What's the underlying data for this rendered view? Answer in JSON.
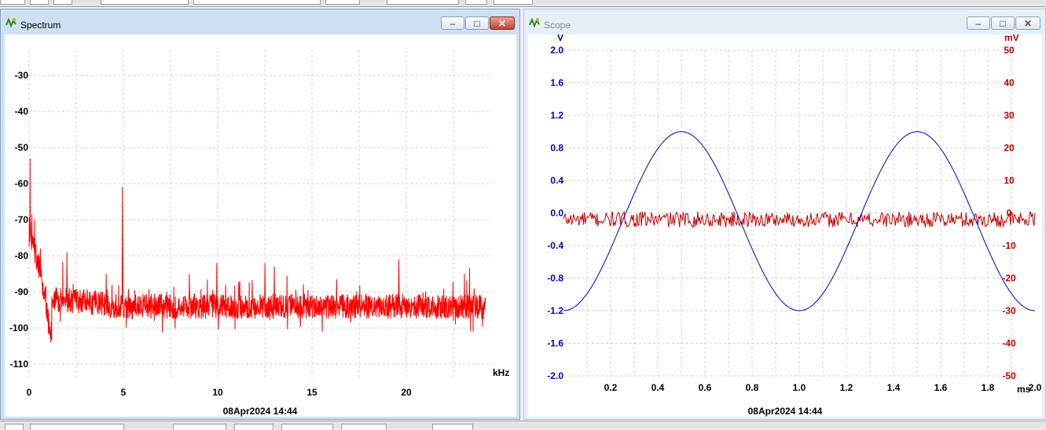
{
  "spectrum": {
    "title": "Spectrum",
    "x_unit": "kHz",
    "timestamp": "08Apr2024  14:44",
    "y_ticks": [
      "-30",
      "-40",
      "-50",
      "-60",
      "-70",
      "-80",
      "-90",
      "-100",
      "-110"
    ],
    "x_ticks": [
      "0",
      "5",
      "10",
      "15",
      "20"
    ],
    "buttons": {
      "minimize": "minimize",
      "maximize": "maximize",
      "close": "close"
    }
  },
  "scope": {
    "title": "Scope",
    "left_unit": "V",
    "right_unit": "mV",
    "x_unit": "ms",
    "timestamp": "08Apr2024  14:44",
    "left_ticks": [
      "2.0",
      "1.6",
      "1.2",
      "0.8",
      "0.4",
      "0.0",
      "-0.4",
      "-0.8",
      "-1.2",
      "-1.6",
      "-2.0"
    ],
    "right_ticks": [
      "50",
      "40",
      "30",
      "20",
      "10",
      "0",
      "-10",
      "-20",
      "-30",
      "-40",
      "-50"
    ],
    "x_ticks": [
      "0.2",
      "0.4",
      "0.6",
      "0.8",
      "1.0",
      "1.2",
      "1.4",
      "1.6",
      "1.8",
      "2.0"
    ],
    "buttons": {
      "minimize": "minimize",
      "maximize": "maximize",
      "close": "close"
    }
  },
  "chart_data": [
    {
      "type": "line",
      "x_range": [
        0,
        24.2
      ],
      "ylim": [
        -115,
        -25
      ],
      "series": [
        {
          "color": "#ff0000",
          "noise_floor": -94,
          "peaks": [
            {
              "x": 0.05,
              "y": -53
            },
            {
              "x": 0.3,
              "y": -70
            },
            {
              "x": 0.6,
              "y": -78
            },
            {
              "x": 2.0,
              "y": -79
            },
            {
              "x": 4.95,
              "y": -61
            },
            {
              "x": 8.5,
              "y": -85
            },
            {
              "x": 9.95,
              "y": -82
            },
            {
              "x": 12.5,
              "y": -82
            },
            {
              "x": 13.0,
              "y": -83
            },
            {
              "x": 19.6,
              "y": -81
            },
            {
              "x": 23.6,
              "y": -89
            }
          ]
        }
      ]
    },
    {
      "type": "line",
      "x_range": [
        0.0,
        2.0
      ],
      "ylim": [
        -2.0,
        2.0
      ],
      "y2lim": [
        -50,
        50
      ],
      "series": [
        {
          "axis": "left",
          "color": "#0000c0",
          "waveform": "sine",
          "offset": -0.1,
          "amplitude": 1.1,
          "period_ms": 1.0,
          "peak_at_ms": 0.5
        },
        {
          "axis": "right",
          "color": "#c00000",
          "waveform": "noise",
          "mean": -2,
          "spread": 1.5
        }
      ]
    }
  ]
}
